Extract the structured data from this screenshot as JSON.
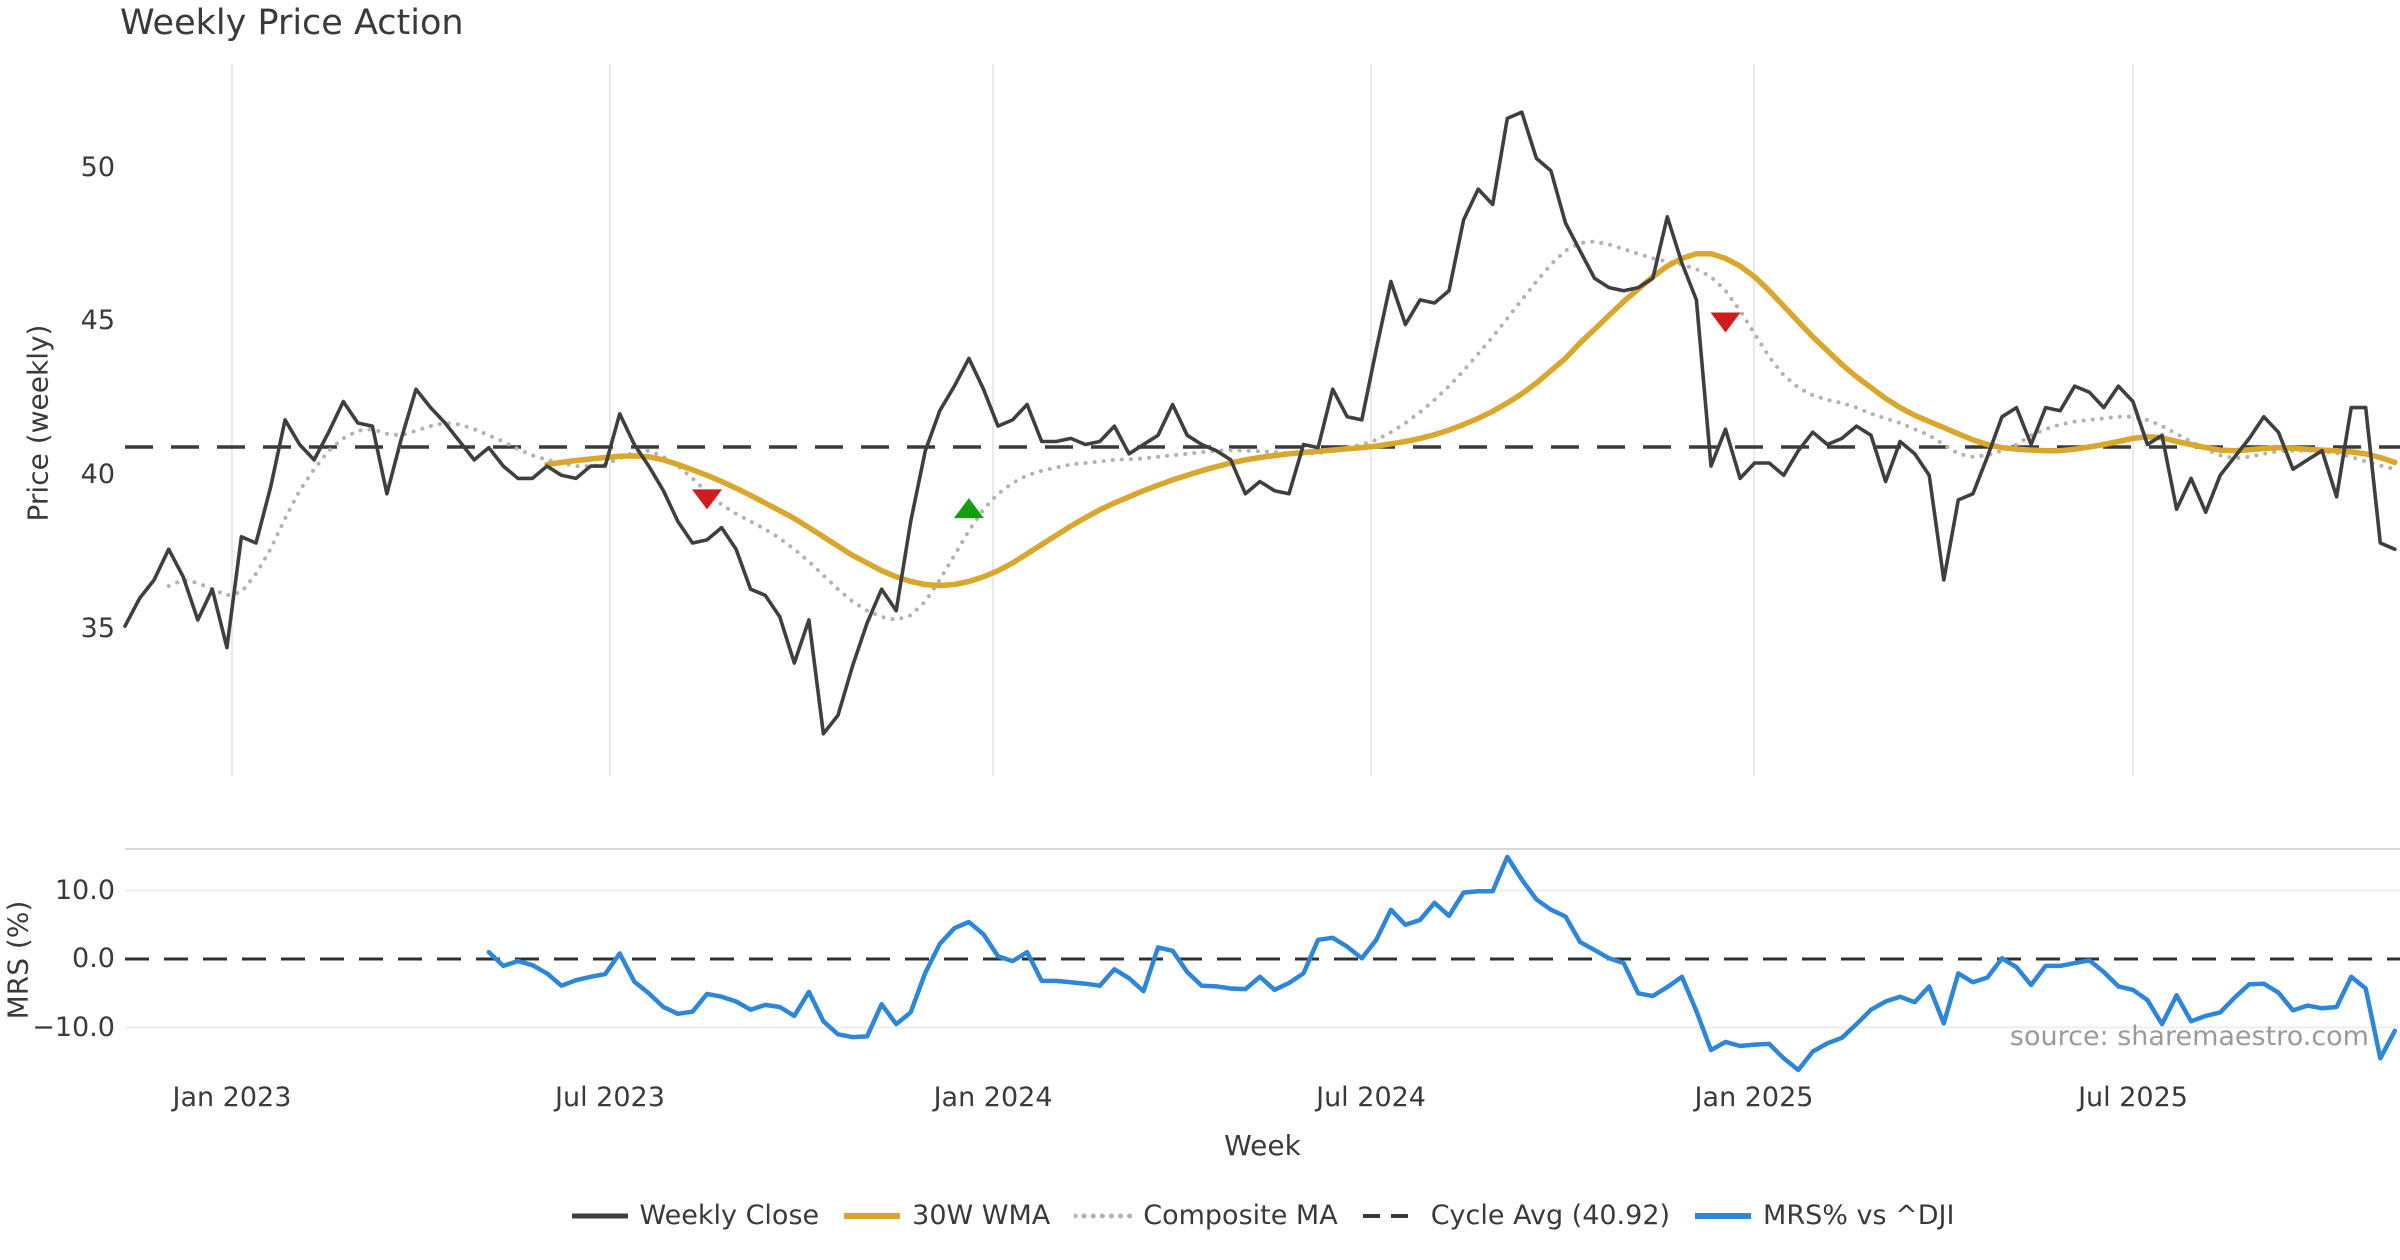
{
  "title": "Weekly Price Action",
  "source_note": "source: sharemaestro.com",
  "colors": {
    "close": "#3f3f3f",
    "wma": "#d9a62e",
    "composite": "#b3b3b3",
    "cycle": "#3a3a3a",
    "mrs": "#2d86d8",
    "marker_up": "#159e15",
    "marker_down": "#cf1c1c",
    "grid": "#e8e8ee",
    "panel_border": "#d6d6dd",
    "subgrid": "#ededf2",
    "zero_dash": "#2f2f2f",
    "text": "#3a3a3a",
    "source_text": "#9a9a9a"
  },
  "xaxis": {
    "label": "Week",
    "ticks": [
      {
        "label": "Jan 2023",
        "week": 7.35
      },
      {
        "label": "Jul 2023",
        "week": 33.33
      },
      {
        "label": "Jan 2024",
        "week": 59.66
      },
      {
        "label": "Jul 2024",
        "week": 85.64
      },
      {
        "label": "Jan 2025",
        "week": 111.96
      },
      {
        "label": "Jul 2025",
        "week": 138.01
      }
    ]
  },
  "legend": [
    {
      "label": "Weekly Close",
      "color": "#3f3f3f",
      "style": "solid",
      "width": 5
    },
    {
      "label": "30W WMA",
      "color": "#d9a62e",
      "style": "solid",
      "width": 6
    },
    {
      "label": "Composite MA",
      "color": "#b3b3b3",
      "style": "dotted",
      "width": 5
    },
    {
      "label": "Cycle Avg (40.92)",
      "color": "#3a3a3a",
      "style": "dashed",
      "width": 4
    },
    {
      "label": "MRS% vs ^DJI",
      "color": "#2d86d8",
      "style": "solid",
      "width": 6
    }
  ],
  "chart_data": [
    {
      "type": "line",
      "panel": "price",
      "title": "Weekly Price Action",
      "ylabel": "Price (weekly)",
      "ylim": [
        30.2,
        53.4
      ],
      "grid": "vertical-only",
      "cycle_avg": 40.92,
      "yticks": [
        {
          "label": "50",
          "value": 50
        },
        {
          "label": "45",
          "value": 45
        },
        {
          "label": "40",
          "value": 40
        },
        {
          "label": "35",
          "value": 35
        }
      ],
      "series": [
        {
          "name": "Composite MA",
          "color": "#b3b3b3",
          "style": "dotted",
          "width": 4,
          "start_week": 3,
          "values": [
            36.4,
            36.6,
            36.5,
            36.3,
            36.1,
            36.2,
            36.8,
            37.6,
            38.6,
            39.5,
            40.2,
            40.8,
            41.2,
            41.45,
            41.5,
            41.35,
            41.3,
            41.45,
            41.6,
            41.7,
            41.65,
            41.5,
            41.3,
            41.1,
            40.85,
            40.65,
            40.5,
            40.4,
            40.3,
            40.3,
            40.35,
            40.55,
            40.75,
            40.8,
            40.6,
            40.3,
            39.9,
            39.45,
            39.05,
            38.75,
            38.5,
            38.25,
            37.95,
            37.6,
            37.2,
            36.75,
            36.3,
            35.9,
            35.6,
            35.4,
            35.3,
            35.45,
            35.9,
            36.6,
            37.4,
            38.2,
            38.9,
            39.4,
            39.75,
            40.0,
            40.15,
            40.25,
            40.35,
            40.4,
            40.45,
            40.5,
            40.52,
            40.55,
            40.6,
            40.65,
            40.7,
            40.75,
            40.8,
            40.82,
            40.8,
            40.78,
            40.75,
            40.72,
            40.7,
            40.72,
            40.8,
            40.9,
            41.0,
            41.15,
            41.4,
            41.7,
            42.05,
            42.45,
            42.9,
            43.4,
            43.95,
            44.5,
            45.1,
            45.7,
            46.3,
            46.85,
            47.3,
            47.55,
            47.6,
            47.5,
            47.35,
            47.2,
            47.05,
            46.95,
            46.85,
            46.7,
            46.45,
            46.0,
            45.35,
            44.6,
            43.85,
            43.25,
            42.85,
            42.6,
            42.45,
            42.35,
            42.2,
            42.0,
            41.85,
            41.7,
            41.5,
            41.3,
            41.0,
            40.7,
            40.6,
            40.65,
            40.8,
            41.0,
            41.3,
            41.5,
            41.65,
            41.75,
            41.8,
            41.85,
            41.9,
            41.9,
            41.8,
            41.6,
            41.35,
            41.1,
            40.85,
            40.65,
            40.55,
            40.6,
            40.7,
            40.78,
            40.8,
            40.8,
            40.78,
            40.72,
            40.6,
            40.45,
            40.32,
            40.2
          ]
        },
        {
          "name": "30W WMA",
          "color": "#d9a62e",
          "style": "solid",
          "width": 5.5,
          "start_week": 29,
          "values": [
            40.35,
            40.42,
            40.48,
            40.53,
            40.58,
            40.62,
            40.63,
            40.6,
            40.5,
            40.35,
            40.18,
            40.0,
            39.8,
            39.58,
            39.35,
            39.1,
            38.85,
            38.6,
            38.3,
            38.0,
            37.7,
            37.4,
            37.15,
            36.9,
            36.7,
            36.55,
            36.45,
            36.42,
            36.45,
            36.55,
            36.7,
            36.9,
            37.15,
            37.45,
            37.75,
            38.05,
            38.35,
            38.62,
            38.88,
            39.1,
            39.3,
            39.5,
            39.68,
            39.85,
            40.0,
            40.15,
            40.28,
            40.4,
            40.5,
            40.58,
            40.64,
            40.7,
            40.74,
            40.78,
            40.82,
            40.86,
            40.9,
            40.95,
            41.02,
            41.1,
            41.2,
            41.32,
            41.47,
            41.65,
            41.85,
            42.08,
            42.35,
            42.65,
            43.0,
            43.4,
            43.8,
            44.3,
            44.75,
            45.2,
            45.65,
            46.05,
            46.45,
            46.8,
            47.05,
            47.2,
            47.2,
            47.05,
            46.8,
            46.45,
            46.0,
            45.5,
            45.0,
            44.5,
            44.05,
            43.6,
            43.2,
            42.85,
            42.5,
            42.2,
            41.95,
            41.75,
            41.55,
            41.35,
            41.15,
            41.0,
            40.9,
            40.85,
            40.82,
            40.8,
            40.8,
            40.85,
            40.92,
            41.0,
            41.1,
            41.2,
            41.25,
            41.22,
            41.1,
            41.0,
            40.9,
            40.82,
            40.8,
            40.83,
            40.87,
            40.9,
            40.88,
            40.85,
            40.82,
            40.8,
            40.76,
            40.7,
            40.58,
            40.42
          ]
        },
        {
          "name": "Weekly Close",
          "color": "#3f3f3f",
          "style": "solid",
          "width": 3.6,
          "start_week": 0,
          "values": [
            35.1,
            36.0,
            36.6,
            37.6,
            36.7,
            35.3,
            36.3,
            34.4,
            38.0,
            37.8,
            39.6,
            41.8,
            41.0,
            40.5,
            41.4,
            42.4,
            41.7,
            41.6,
            39.4,
            41.2,
            42.8,
            42.2,
            41.7,
            41.1,
            40.5,
            40.9,
            40.3,
            39.9,
            39.9,
            40.3,
            40.0,
            39.9,
            40.3,
            40.3,
            42.0,
            41.0,
            40.3,
            39.5,
            38.5,
            37.8,
            37.9,
            38.3,
            37.6,
            36.3,
            36.1,
            35.4,
            33.9,
            35.3,
            31.6,
            32.2,
            33.8,
            35.2,
            36.3,
            35.6,
            38.5,
            40.8,
            42.1,
            42.9,
            43.8,
            42.8,
            41.6,
            41.8,
            42.3,
            41.1,
            41.1,
            41.2,
            41.0,
            41.1,
            41.6,
            40.7,
            41.0,
            41.3,
            42.3,
            41.3,
            41.0,
            40.8,
            40.5,
            39.4,
            39.8,
            39.5,
            39.4,
            41.0,
            40.9,
            42.8,
            41.9,
            41.8,
            44.1,
            46.3,
            44.9,
            45.7,
            45.6,
            46.0,
            48.3,
            49.3,
            48.8,
            51.6,
            51.8,
            50.3,
            49.9,
            48.2,
            47.3,
            46.4,
            46.1,
            46.0,
            46.1,
            46.4,
            48.4,
            46.9,
            45.7,
            40.3,
            41.5,
            39.9,
            40.4,
            40.4,
            40.0,
            40.8,
            41.4,
            41.0,
            41.2,
            41.6,
            41.3,
            39.8,
            41.1,
            40.7,
            40.0,
            36.6,
            39.2,
            39.4,
            40.6,
            41.9,
            42.2,
            41.0,
            42.2,
            42.1,
            42.9,
            42.7,
            42.2,
            42.9,
            42.4,
            41.0,
            41.3,
            38.9,
            39.9,
            38.8,
            40.0,
            40.6,
            41.2,
            41.9,
            41.4,
            40.2,
            40.5,
            40.8,
            39.3,
            42.2,
            42.2,
            37.8,
            37.6
          ]
        }
      ],
      "markers": [
        {
          "shape": "triangle-down",
          "color": "#cf1c1c",
          "week": 40,
          "price": 39.25
        },
        {
          "shape": "triangle-up",
          "color": "#159e15",
          "week": 58,
          "price": 38.9
        },
        {
          "shape": "triangle-down",
          "color": "#cf1c1c",
          "week": 110,
          "price": 45.0
        }
      ]
    },
    {
      "type": "line",
      "panel": "mrs",
      "ylabel": "MRS (%)",
      "ylim": [
        -16.9,
        16.1
      ],
      "zero_line": 0,
      "yticks": [
        {
          "label": "10.0",
          "value": 10
        },
        {
          "label": "0.0",
          "value": 0
        },
        {
          "label": "−10.0",
          "value": -10
        }
      ],
      "series": [
        {
          "name": "MRS% vs ^DJI",
          "color": "#2d86d8",
          "style": "solid",
          "width": 4.5,
          "start_week": 25,
          "values": [
            1.0,
            -1.0,
            -0.3,
            -0.9,
            -2.1,
            -3.9,
            -3.1,
            -2.6,
            -2.2,
            0.8,
            -3.3,
            -5.0,
            -7.0,
            -8.0,
            -7.7,
            -5.1,
            -5.5,
            -6.2,
            -7.4,
            -6.7,
            -7.0,
            -8.3,
            -4.8,
            -9.1,
            -11.0,
            -11.4,
            -11.3,
            -6.6,
            -9.5,
            -7.8,
            -2.0,
            2.2,
            4.5,
            5.4,
            3.6,
            0.4,
            -0.3,
            1.0,
            -3.2,
            -3.2,
            -3.4,
            -3.6,
            -3.9,
            -1.5,
            -2.8,
            -4.7,
            1.7,
            1.2,
            -1.9,
            -3.9,
            -4.0,
            -4.3,
            -4.4,
            -2.6,
            -4.5,
            -3.5,
            -2.1,
            2.8,
            3.1,
            1.8,
            0.1,
            2.8,
            7.2,
            5.0,
            5.7,
            8.2,
            6.3,
            9.7,
            9.9,
            9.9,
            14.9,
            11.6,
            8.7,
            7.2,
            6.2,
            2.5,
            1.3,
            0.1,
            -0.6,
            -5.0,
            -5.4,
            -4.1,
            -2.6,
            -7.6,
            -13.3,
            -12.1,
            -12.7,
            -12.5,
            -12.4,
            -14.5,
            -16.2,
            -13.5,
            -12.3,
            -11.5,
            -9.5,
            -7.4,
            -6.2,
            -5.5,
            -6.3,
            -4.0,
            -9.4,
            -2.1,
            -3.4,
            -2.7,
            0.1,
            -1.2,
            -3.8,
            -1.0,
            -1.0,
            -0.6,
            -0.2,
            -1.9,
            -4.0,
            -4.5,
            -6.0,
            -9.5,
            -5.3,
            -9.1,
            -8.3,
            -7.8,
            -5.6,
            -3.7,
            -3.6,
            -4.9,
            -7.5,
            -6.8,
            -7.2,
            -7.0,
            -2.6,
            -4.3,
            -14.5,
            -10.5
          ]
        }
      ]
    }
  ]
}
